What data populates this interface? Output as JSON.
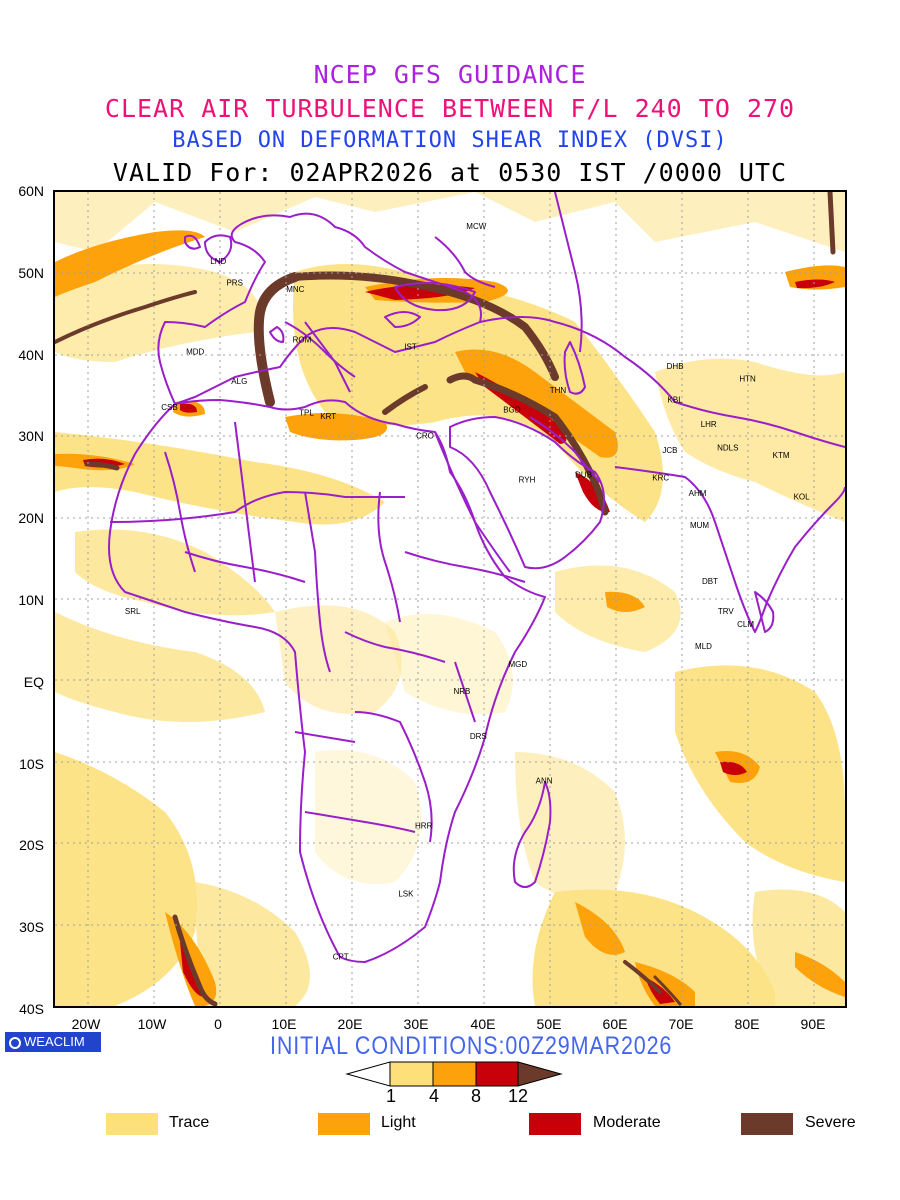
{
  "titles": {
    "line1": "NCEP GFS GUIDANCE",
    "line2": "CLEAR AIR TURBULENCE BETWEEN F/L 240 TO 270",
    "line3": "BASED ON DEFORMATION SHEAR INDEX (DVSI)",
    "line4": "VALID For: 02APR2026 at 0530 IST /0000 UTC"
  },
  "axes": {
    "lat_labels": [
      "60N",
      "50N",
      "40N",
      "30N",
      "20N",
      "10N",
      "EQ",
      "10S",
      "20S",
      "30S",
      "40S"
    ],
    "lon_labels": [
      "20W",
      "10W",
      "0",
      "10E",
      "20E",
      "30E",
      "40E",
      "50E",
      "60E",
      "70E",
      "80E",
      "90E"
    ]
  },
  "map": {
    "extent": {
      "lon_min": -25,
      "lon_max": 95,
      "lat_min": -40,
      "lat_max": 60
    },
    "cities": [
      {
        "code": "MCW",
        "lon": 39,
        "lat": 55.8
      },
      {
        "code": "LND",
        "lon": -0.2,
        "lat": 51.5
      },
      {
        "code": "PRS",
        "lon": 2.3,
        "lat": 48.9
      },
      {
        "code": "MNC",
        "lon": 11.5,
        "lat": 48.1
      },
      {
        "code": "ROM",
        "lon": 12.5,
        "lat": 41.9
      },
      {
        "code": "MDD",
        "lon": -3.7,
        "lat": 40.4
      },
      {
        "code": "IST",
        "lon": 29,
        "lat": 41
      },
      {
        "code": "ALG",
        "lon": 3,
        "lat": 36.8
      },
      {
        "code": "CSB",
        "lon": -7.6,
        "lat": 33.6
      },
      {
        "code": "TPL",
        "lon": 13.2,
        "lat": 32.9
      },
      {
        "code": "KRT",
        "lon": 16.5,
        "lat": 32.5
      },
      {
        "code": "CRO",
        "lon": 31.2,
        "lat": 30.1
      },
      {
        "code": "BGD",
        "lon": 44.4,
        "lat": 33.3
      },
      {
        "code": "THN",
        "lon": 51.4,
        "lat": 35.7
      },
      {
        "code": "RYH",
        "lon": 46.7,
        "lat": 24.7
      },
      {
        "code": "DUB",
        "lon": 55.3,
        "lat": 25.3
      },
      {
        "code": "DHB",
        "lon": 69.2,
        "lat": 38.6
      },
      {
        "code": "HTN",
        "lon": 80.2,
        "lat": 37.1
      },
      {
        "code": "KBL",
        "lon": 69.2,
        "lat": 34.5
      },
      {
        "code": "LHR",
        "lon": 74.3,
        "lat": 31.5
      },
      {
        "code": "JCB",
        "lon": 68.4,
        "lat": 28.3
      },
      {
        "code": "NDLS",
        "lon": 77.2,
        "lat": 28.6
      },
      {
        "code": "KTM",
        "lon": 85.3,
        "lat": 27.7
      },
      {
        "code": "KRC",
        "lon": 67,
        "lat": 24.9
      },
      {
        "code": "AHM",
        "lon": 72.6,
        "lat": 23
      },
      {
        "code": "KOL",
        "lon": 88.4,
        "lat": 22.6
      },
      {
        "code": "MUM",
        "lon": 72.9,
        "lat": 19.1
      },
      {
        "code": "DBT",
        "lon": 74.5,
        "lat": 12.2
      },
      {
        "code": "TRV",
        "lon": 76.9,
        "lat": 8.5
      },
      {
        "code": "CLM",
        "lon": 79.9,
        "lat": 6.9
      },
      {
        "code": "MLD",
        "lon": 73.5,
        "lat": 4.2
      },
      {
        "code": "SRL",
        "lon": -13.2,
        "lat": 8.5
      },
      {
        "code": "MGD",
        "lon": 45.3,
        "lat": 2
      },
      {
        "code": "NRB",
        "lon": 36.8,
        "lat": -1.3
      },
      {
        "code": "DRS",
        "lon": 39.3,
        "lat": -6.8
      },
      {
        "code": "ANN",
        "lon": 49.3,
        "lat": -12.3
      },
      {
        "code": "HRR",
        "lon": 31,
        "lat": -17.8
      },
      {
        "code": "LSK",
        "lon": 28.3,
        "lat": -26.2
      },
      {
        "code": "CPT",
        "lon": 18.4,
        "lat": -33.9
      }
    ]
  },
  "branding": {
    "logo": "WEACLIM"
  },
  "initial_conditions": "INITIAL CONDITIONS:00Z29MAR2026",
  "colorbar": {
    "ticks": [
      "1",
      "4",
      "8",
      "12"
    ],
    "colors": [
      "#ffffff",
      "#fde07a",
      "#fda20a",
      "#c8000a",
      "#6b3a2a"
    ]
  },
  "legend": [
    {
      "label": "Trace",
      "color": "#fde07a"
    },
    {
      "label": "Light",
      "color": "#fda20a"
    },
    {
      "label": "Moderate",
      "color": "#c8000a"
    },
    {
      "label": "Severe",
      "color": "#6b3a2a"
    }
  ],
  "colors": {
    "border": "#9a1fc9",
    "trace": "#fde07a",
    "light": "#fda20a",
    "moderate": "#c8000a",
    "severe": "#6b3a2a"
  }
}
